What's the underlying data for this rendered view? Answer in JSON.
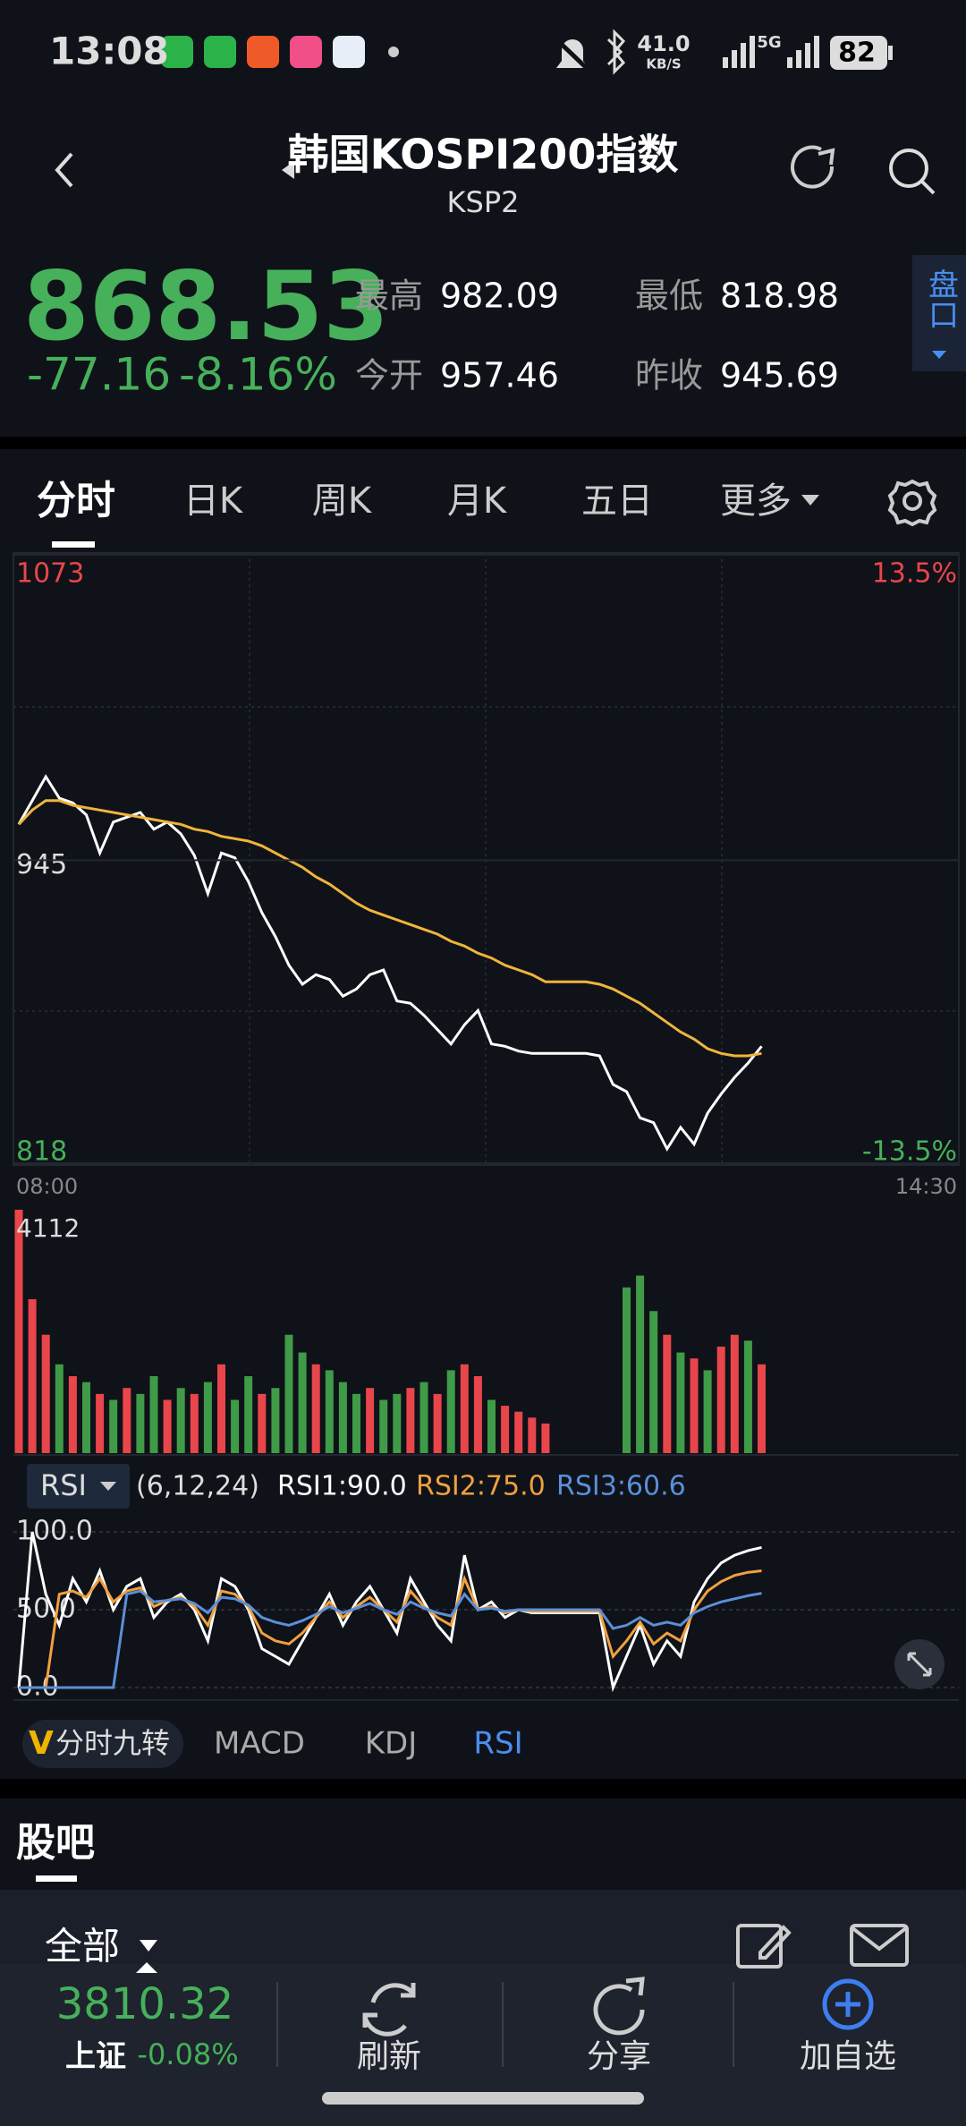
{
  "status_bar": {
    "time": "13:08",
    "network_speed": "41.0",
    "network_unit": "KB/S",
    "network_type": "5G",
    "battery": "82"
  },
  "header": {
    "title": "韩国KOSPI200指数",
    "code": "KSP2"
  },
  "quote": {
    "price": "868.53",
    "change": "-77.16",
    "change_pct": "-8.16%",
    "high_label": "最高",
    "high": "982.09",
    "low_label": "最低",
    "low": "818.98",
    "open_label": "今开",
    "open": "957.46",
    "prev_close_label": "昨收",
    "prev_close": "945.69",
    "side_button": "盘口"
  },
  "tabs": [
    "分时",
    "日K",
    "周K",
    "月K",
    "五日",
    "更多"
  ],
  "chart_data": [
    {
      "type": "line",
      "ylim": [
        818,
        1073
      ],
      "yticks": [
        1073,
        945,
        818
      ],
      "y2lim": [
        -13.5,
        13.5
      ],
      "y2ticks": [
        {
          "value": 13.5,
          "label": "13.5%"
        },
        {
          "value": -13.5,
          "label": "-13.5%"
        }
      ],
      "x_labels": [
        "08:00",
        "14:30"
      ],
      "series": [
        {
          "color": "#ffffff",
          "values": [
            960,
            970,
            980,
            971,
            969,
            964,
            948,
            961,
            963,
            965,
            958,
            961,
            956,
            947,
            931,
            948,
            946,
            936,
            923,
            913,
            901,
            893,
            897,
            895,
            888,
            891,
            897,
            899,
            886,
            885,
            880,
            874,
            868,
            876,
            882,
            868,
            867,
            865,
            864,
            864,
            864,
            864,
            864,
            863,
            851,
            848,
            837,
            835,
            824,
            833,
            826,
            839,
            847,
            854,
            860,
            867
          ]
        },
        {
          "color": "#f0b43c",
          "values": [
            960,
            966,
            970,
            970,
            968,
            967,
            966,
            965,
            964,
            963,
            962,
            961,
            960,
            958,
            957,
            955,
            954,
            953,
            951,
            948,
            945,
            942,
            938,
            935,
            931,
            927,
            924,
            922,
            920,
            918,
            916,
            914,
            911,
            909,
            906,
            904,
            901,
            899,
            897,
            894,
            894,
            894,
            894,
            893,
            891,
            888,
            885,
            881,
            877,
            873,
            870,
            866,
            864,
            863,
            863,
            864
          ]
        }
      ]
    },
    {
      "type": "bar",
      "ylim": [
        0,
        4112
      ],
      "yticks": [
        4112
      ],
      "values": [
        4112,
        2600,
        2000,
        1500,
        1300,
        1200,
        1000,
        900,
        1100,
        1000,
        1300,
        900,
        1100,
        1000,
        1200,
        1500,
        900,
        1300,
        1000,
        1100,
        2000,
        1700,
        1500,
        1400,
        1200,
        1000,
        1100,
        900,
        1000,
        1100,
        1200,
        1000,
        1400,
        1500,
        1300,
        900,
        800,
        700,
        600,
        500,
        0,
        0,
        0,
        0,
        0,
        2800,
        3000,
        2400,
        2000,
        1700,
        1600,
        1400,
        1800,
        2000,
        1900,
        1500
      ],
      "colors": [
        "#e8464a",
        "#e8464a",
        "#e8464a",
        "#3f9b47",
        "#e8464a",
        "#3f9b47",
        "#e8464a",
        "#3f9b47",
        "#e8464a",
        "#3f9b47",
        "#3f9b47",
        "#e8464a",
        "#3f9b47",
        "#e8464a",
        "#3f9b47",
        "#e8464a",
        "#3f9b47",
        "#3f9b47",
        "#e8464a",
        "#3f9b47",
        "#3f9b47",
        "#3f9b47",
        "#e8464a",
        "#3f9b47",
        "#3f9b47",
        "#3f9b47",
        "#e8464a",
        "#3f9b47",
        "#3f9b47",
        "#e8464a",
        "#3f9b47",
        "#e8464a",
        "#3f9b47",
        "#e8464a",
        "#e8464a",
        "#3f9b47",
        "#e8464a",
        "#e8464a",
        "#e8464a",
        "#e8464a",
        "#e8464a",
        "#e8464a",
        "#e8464a",
        "#e8464a",
        "#e8464a",
        "#3f9b47",
        "#3f9b47",
        "#3f9b47",
        "#e8464a",
        "#3f9b47",
        "#e8464a",
        "#3f9b47",
        "#e8464a",
        "#e8464a",
        "#3f9b47",
        "#e8464a"
      ]
    },
    {
      "type": "line",
      "indicator": "RSI",
      "params": "(6,12,24)",
      "ylim": [
        0,
        100
      ],
      "yticks": [
        {
          "value": 100,
          "label": "100.0"
        },
        {
          "value": 50,
          "label": "50.0"
        },
        {
          "value": 0,
          "label": "0.0"
        }
      ],
      "series": [
        {
          "label": "RSI1:90.0",
          "color": "#ffffff",
          "values": [
            0,
            100,
            60,
            40,
            70,
            55,
            75,
            50,
            65,
            70,
            45,
            55,
            60,
            50,
            30,
            70,
            65,
            50,
            25,
            20,
            15,
            30,
            45,
            60,
            40,
            55,
            65,
            50,
            35,
            70,
            55,
            40,
            30,
            85,
            50,
            55,
            45,
            50,
            48,
            48,
            48,
            48,
            48,
            48,
            0,
            20,
            40,
            15,
            30,
            20,
            55,
            70,
            80,
            85,
            88,
            90
          ]
        },
        {
          "label": "RSI2:75.0",
          "color": "#f0a040",
          "values": [
            0,
            0,
            0,
            60,
            62,
            58,
            70,
            55,
            62,
            64,
            52,
            56,
            58,
            52,
            40,
            62,
            60,
            52,
            35,
            30,
            28,
            35,
            45,
            55,
            45,
            52,
            58,
            50,
            42,
            62,
            52,
            45,
            40,
            70,
            50,
            52,
            48,
            50,
            49,
            49,
            49,
            49,
            49,
            49,
            20,
            30,
            42,
            28,
            35,
            30,
            50,
            62,
            68,
            72,
            74,
            75
          ]
        },
        {
          "label": "RSI3:60.6",
          "color": "#5b8fd9",
          "values": [
            0,
            0,
            0,
            0,
            0,
            0,
            0,
            0,
            60,
            62,
            55,
            56,
            57,
            54,
            48,
            58,
            57,
            53,
            45,
            42,
            40,
            43,
            47,
            52,
            48,
            51,
            54,
            50,
            47,
            55,
            51,
            48,
            46,
            60,
            50,
            51,
            49,
            50,
            50,
            50,
            50,
            50,
            50,
            50,
            38,
            40,
            45,
            40,
            42,
            40,
            48,
            52,
            55,
            57,
            59,
            60.6
          ]
        }
      ]
    }
  ],
  "indicator_tabs": {
    "v_badge": "V",
    "nine": "分时九转",
    "items": [
      "MACD",
      "KDJ",
      "RSI"
    ]
  },
  "forum": {
    "title": "股吧",
    "filter": "全部"
  },
  "bottom_nav": {
    "index_value": "3810.32",
    "index_name": "上证",
    "index_change": "-0.08%",
    "refresh": "刷新",
    "share": "分享",
    "add": "加自选"
  }
}
